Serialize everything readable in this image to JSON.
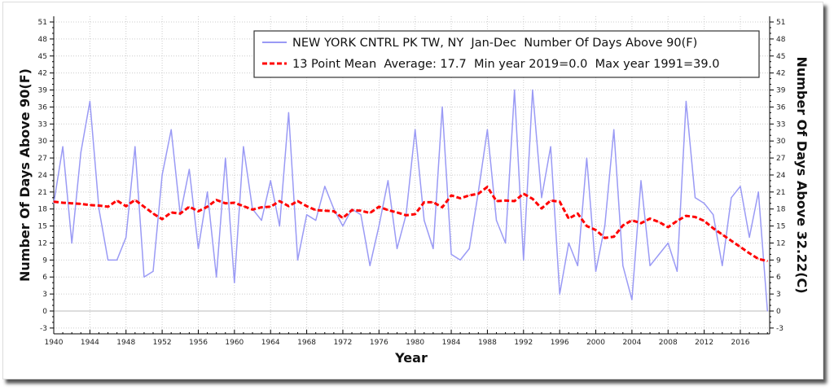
{
  "chart_data": {
    "type": "line",
    "xlabel": "Year",
    "ylabel_left": "Number Of Days Above 90(F)",
    "ylabel_right": "Number Of Days Above 32.22(C)",
    "xlim": [
      1940,
      2019
    ],
    "ylim": [
      -3,
      51
    ],
    "x_ticks": [
      1940,
      1944,
      1948,
      1952,
      1956,
      1960,
      1964,
      1968,
      1972,
      1976,
      1980,
      1984,
      1988,
      1992,
      1996,
      2000,
      2004,
      2008,
      2012,
      2016
    ],
    "y_ticks": [
      -3,
      0,
      3,
      6,
      9,
      12,
      15,
      18,
      21,
      24,
      27,
      30,
      33,
      36,
      39,
      42,
      45,
      48,
      51
    ],
    "grid": true,
    "legend_position": "top-right",
    "x": [
      1940,
      1941,
      1942,
      1943,
      1944,
      1945,
      1946,
      1947,
      1948,
      1949,
      1950,
      1951,
      1952,
      1953,
      1954,
      1955,
      1956,
      1957,
      1958,
      1959,
      1960,
      1961,
      1962,
      1963,
      1964,
      1965,
      1966,
      1967,
      1968,
      1969,
      1970,
      1971,
      1972,
      1973,
      1974,
      1975,
      1976,
      1977,
      1978,
      1979,
      1980,
      1981,
      1982,
      1983,
      1984,
      1985,
      1986,
      1987,
      1988,
      1989,
      1990,
      1991,
      1992,
      1993,
      1994,
      1995,
      1996,
      1997,
      1998,
      1999,
      2000,
      2001,
      2002,
      2003,
      2004,
      2005,
      2006,
      2007,
      2008,
      2009,
      2010,
      2011,
      2012,
      2013,
      2014,
      2015,
      2016,
      2017,
      2018,
      2019
    ],
    "series": [
      {
        "name": "NEW YORK CNTRL PK TW, NY  Jan-Dec  Number Of Days Above 90(F)",
        "color": "#9a9af5",
        "style": "solid",
        "values": [
          19,
          29,
          12,
          28,
          37,
          18,
          9,
          9,
          13,
          29,
          6,
          7,
          24,
          32,
          17,
          25,
          11,
          21,
          6,
          27,
          5,
          29,
          18,
          16,
          23,
          15,
          35,
          9,
          17,
          16,
          22,
          18,
          15,
          18,
          17,
          8,
          15,
          23,
          11,
          17,
          32,
          16,
          11,
          36,
          10,
          9,
          11,
          21,
          32,
          16,
          12,
          39,
          9,
          39,
          20,
          29,
          3,
          12,
          8,
          27,
          7,
          15,
          32,
          8,
          2,
          23,
          8,
          10,
          12,
          7,
          37,
          20,
          19,
          17,
          8,
          20,
          22,
          13,
          21,
          0
        ]
      },
      {
        "name": "13 Point Mean  Average: 17.7  Min year 2019=0.0  Max year 1991=39.0",
        "color": "#ff0000",
        "style": "dashed",
        "values": [
          19.3,
          19.1,
          19.0,
          18.9,
          18.7,
          18.6,
          18.4,
          19.5,
          18.5,
          19.6,
          18.4,
          17.2,
          16.2,
          17.4,
          17.2,
          18.4,
          17.6,
          18.4,
          19.6,
          19.0,
          19.1,
          18.5,
          17.9,
          18.3,
          18.4,
          19.4,
          18.5,
          19.4,
          18.5,
          17.8,
          17.7,
          17.6,
          16.4,
          17.8,
          17.7,
          17.3,
          18.4,
          17.8,
          17.4,
          16.9,
          17.1,
          19.2,
          19.2,
          18.3,
          20.4,
          19.9,
          20.4,
          20.7,
          21.9,
          19.4,
          19.5,
          19.4,
          20.7,
          19.8,
          18.1,
          19.5,
          19.3,
          16.3,
          17.2,
          15.0,
          14.3,
          12.9,
          13.1,
          15.1,
          16.0,
          15.5,
          16.3,
          15.7,
          14.8,
          15.9,
          16.8,
          16.6,
          15.9,
          14.6,
          13.5,
          12.4,
          11.3,
          10.2,
          9.2,
          8.8
        ]
      }
    ],
    "stats": {
      "average": 17.7,
      "min_year": 2019,
      "min": 0.0,
      "max_year": 1991,
      "max": 39.0
    }
  }
}
